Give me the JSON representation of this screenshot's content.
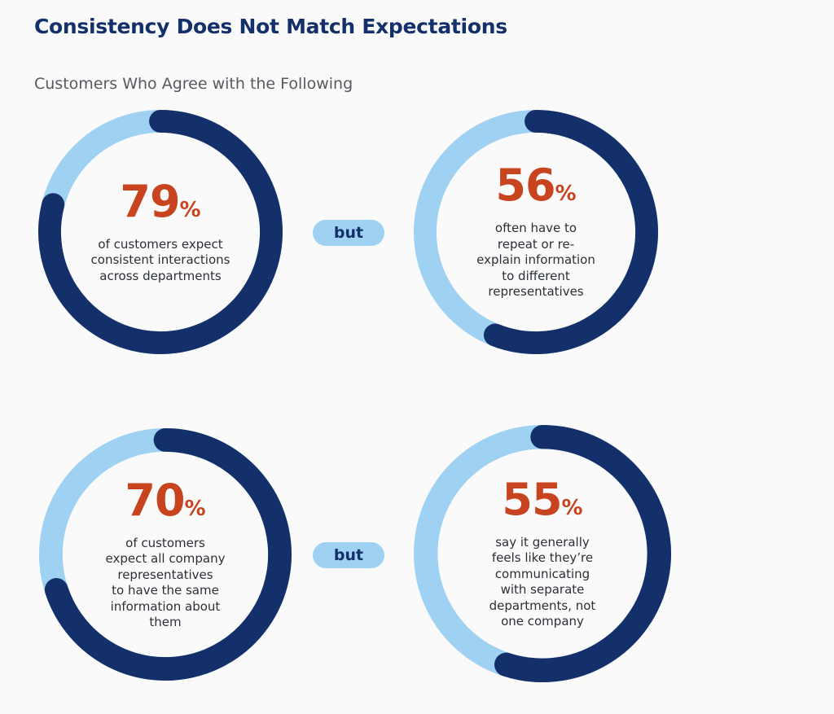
{
  "title": "Consistency Does Not Match Expectations",
  "subtitle": "Customers Who Agree with the Following",
  "colors": {
    "filled": "#14306b",
    "remaining": "#9fd1f3",
    "percent": "#c8441f"
  },
  "connector_label": "but",
  "chart_data": [
    {
      "type": "pie",
      "value": 79,
      "unit": "%",
      "description": [
        "of customers expect",
        "consistent interactions",
        "across departments"
      ]
    },
    {
      "type": "pie",
      "value": 56,
      "unit": "%",
      "description": [
        "often have to",
        "repeat or re-",
        "explain information",
        "to different",
        "representatives"
      ]
    },
    {
      "type": "pie",
      "value": 70,
      "unit": "%",
      "description": [
        "of customers",
        "expect all company",
        "representatives",
        "to have the same",
        "information about",
        "them"
      ]
    },
    {
      "type": "pie",
      "value": 55,
      "unit": "%",
      "description": [
        "say it generally",
        "feels like they’re",
        "communicating",
        "with separate",
        "departments, not",
        "one company"
      ]
    }
  ]
}
